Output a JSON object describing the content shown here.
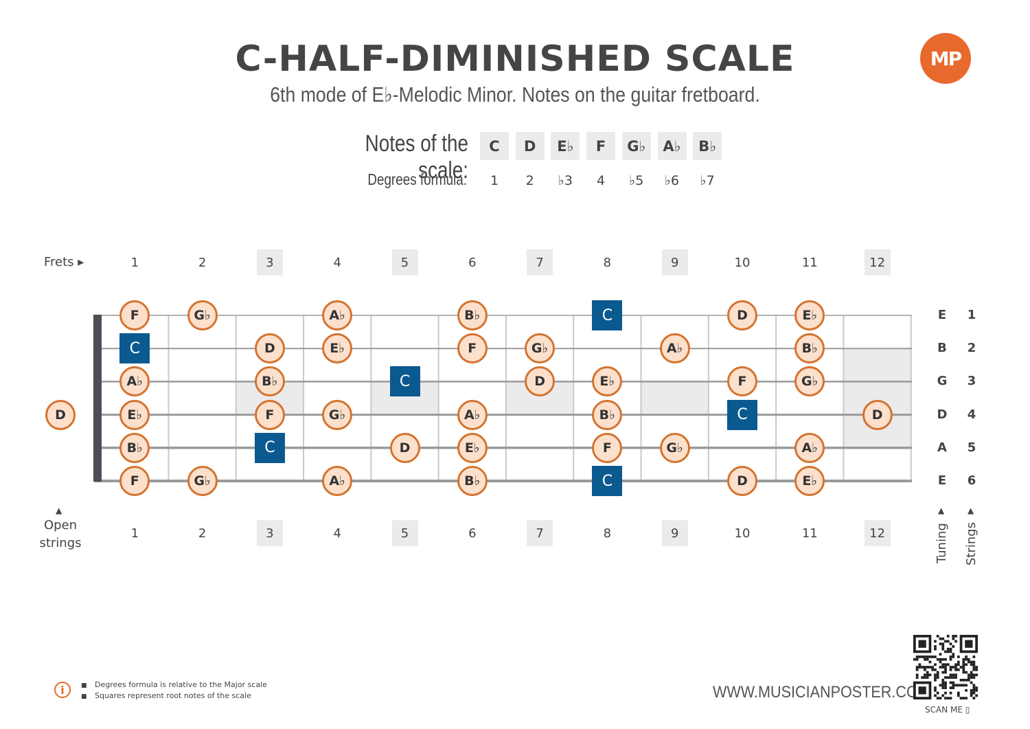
{
  "title": "C-HALF-DIMINISHED SCALE",
  "subtitle": "6th mode of E♭-Melodic Minor. Notes on the guitar fretboard.",
  "logo_text": "MP",
  "notes_label": "Notes of the scale:",
  "degrees_label": "Degrees formula:",
  "scale_notes": [
    "C",
    "D",
    "E♭",
    "F",
    "G♭",
    "A♭",
    "B♭"
  ],
  "degrees": [
    "1",
    "2",
    "♭3",
    "4",
    "♭5",
    "♭6",
    "♭7"
  ],
  "frets_label": "Frets ▸",
  "open_strings_label": [
    "Open",
    "strings"
  ],
  "fret_numbers": [
    "1",
    "2",
    "3",
    "4",
    "5",
    "6",
    "7",
    "8",
    "9",
    "10",
    "11",
    "12"
  ],
  "tuning": [
    "E",
    "B",
    "G",
    "D",
    "A",
    "E"
  ],
  "string_numbers": [
    "1",
    "2",
    "3",
    "4",
    "5",
    "6"
  ],
  "tuning_label": "Tuning",
  "strings_label": "Strings",
  "colors": {
    "accent": "#e8692c",
    "root": "#0b5a8f",
    "note_fill": "#fce0cc",
    "note_border": "#d4732e",
    "shade": "#ebebeb"
  },
  "fretboard": [
    {
      "string": 1,
      "notes": [
        [
          1,
          "F"
        ],
        [
          2,
          "G♭"
        ],
        [
          4,
          "A♭"
        ],
        [
          6,
          "B♭"
        ],
        [
          8,
          "C"
        ],
        [
          10,
          "D"
        ],
        [
          11,
          "E♭"
        ]
      ]
    },
    {
      "string": 2,
      "notes": [
        [
          1,
          "C"
        ],
        [
          3,
          "D"
        ],
        [
          4,
          "E♭"
        ],
        [
          6,
          "F"
        ],
        [
          7,
          "G♭"
        ],
        [
          9,
          "A♭"
        ],
        [
          11,
          "B♭"
        ]
      ]
    },
    {
      "string": 3,
      "notes": [
        [
          1,
          "A♭"
        ],
        [
          3,
          "B♭"
        ],
        [
          5,
          "C"
        ],
        [
          7,
          "D"
        ],
        [
          8,
          "E♭"
        ],
        [
          10,
          "F"
        ],
        [
          11,
          "G♭"
        ]
      ]
    },
    {
      "string": 4,
      "notes": [
        [
          0,
          "D"
        ],
        [
          1,
          "E♭"
        ],
        [
          3,
          "F"
        ],
        [
          4,
          "G♭"
        ],
        [
          6,
          "A♭"
        ],
        [
          8,
          "B♭"
        ],
        [
          10,
          "C"
        ],
        [
          12,
          "D"
        ]
      ]
    },
    {
      "string": 5,
      "notes": [
        [
          1,
          "B♭"
        ],
        [
          3,
          "C"
        ],
        [
          5,
          "D"
        ],
        [
          6,
          "E♭"
        ],
        [
          8,
          "F"
        ],
        [
          9,
          "G♭"
        ],
        [
          11,
          "A♭"
        ]
      ]
    },
    {
      "string": 6,
      "notes": [
        [
          1,
          "F"
        ],
        [
          2,
          "G♭"
        ],
        [
          4,
          "A♭"
        ],
        [
          6,
          "B♭"
        ],
        [
          8,
          "C"
        ],
        [
          10,
          "D"
        ],
        [
          11,
          "E♭"
        ]
      ]
    }
  ],
  "root_note": "C",
  "footnotes": [
    "Degrees formula is relative to the Major scale",
    "Squares represent root notes of the scale"
  ],
  "info_icon": "i",
  "website": "WWW.MUSICIANPOSTER.COM",
  "scan_me": "SCAN ME"
}
